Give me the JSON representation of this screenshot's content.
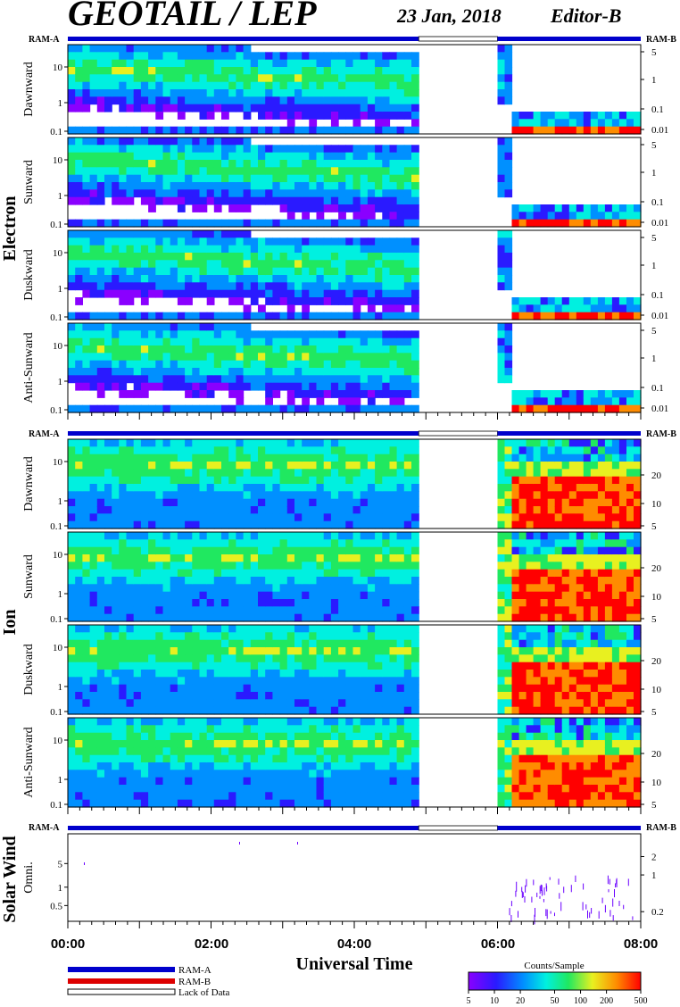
{
  "header": {
    "title": "GEOTAIL / LEP",
    "date": "23 Jan, 2018",
    "editor": "Editor-B"
  },
  "ram_labels": {
    "left": "RAM-A",
    "right": "RAM-B"
  },
  "groups": [
    {
      "label": "Electron"
    },
    {
      "label": "Ion"
    },
    {
      "label": "Solar Wind"
    }
  ],
  "legend": {
    "items": [
      "RAM-A",
      "RAM-B",
      "Lack of Data"
    ],
    "colors": {
      "ram_a": "#0000cc",
      "ram_b": "#dd0000",
      "lack": "#ffffff"
    },
    "colorbar_title": "Counts/Sample",
    "colorbar_ticks": [
      "5",
      "10",
      "20",
      "50",
      "100",
      "200",
      "500"
    ]
  },
  "chart_data": {
    "type": "heatmap",
    "xlabel": "Universal Time",
    "x_ticks": [
      "00:00",
      "02:00",
      "04:00",
      "06:00",
      "08:00"
    ],
    "x_range_hours": [
      0,
      8
    ],
    "data_gap_hours": [
      4.9,
      6.0
    ],
    "panels": [
      {
        "group": "Electron",
        "name": "Dawnward",
        "left_ticks": [
          "10",
          "1",
          "0.1"
        ],
        "right_ticks": [
          "5",
          "1",
          "0.1",
          "0.01"
        ]
      },
      {
        "group": "Electron",
        "name": "Sunward",
        "left_ticks": [
          "10",
          "1",
          "0.1"
        ],
        "right_ticks": [
          "5",
          "1",
          "0.1",
          "0.01"
        ]
      },
      {
        "group": "Electron",
        "name": "Duskward",
        "left_ticks": [
          "10",
          "1",
          "0.1"
        ],
        "right_ticks": [
          "5",
          "1",
          "0.1",
          "0.01"
        ]
      },
      {
        "group": "Electron",
        "name": "Anti-Sunward",
        "left_ticks": [
          "10",
          "1",
          "0.1"
        ],
        "right_ticks": [
          "5",
          "1",
          "0.1",
          "0.01"
        ]
      },
      {
        "group": "Ion",
        "name": "Dawnward",
        "left_ticks": [
          "10",
          "1",
          "0.1"
        ],
        "right_ticks": [
          "20",
          "10",
          "5"
        ]
      },
      {
        "group": "Ion",
        "name": "Sunward",
        "left_ticks": [
          "10",
          "1",
          "0.1"
        ],
        "right_ticks": [
          "20",
          "10",
          "5"
        ]
      },
      {
        "group": "Ion",
        "name": "Duskward",
        "left_ticks": [
          "10",
          "1",
          "0.1"
        ],
        "right_ticks": [
          "20",
          "10",
          "5"
        ]
      },
      {
        "group": "Ion",
        "name": "Anti-Sunward",
        "left_ticks": [
          "10",
          "1",
          "0.1"
        ],
        "right_ticks": [
          "20",
          "10",
          "5"
        ]
      },
      {
        "group": "Solar Wind",
        "name": "Omni.",
        "left_ticks": [
          "5",
          "1",
          "0.5"
        ],
        "right_ticks": [
          "2",
          "1",
          "0.2"
        ]
      }
    ]
  }
}
